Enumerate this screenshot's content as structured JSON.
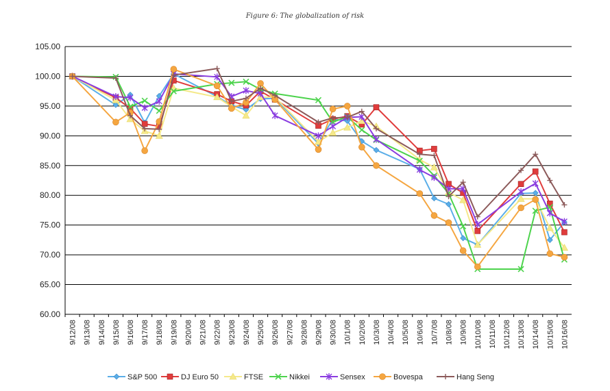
{
  "chart_data": {
    "type": "line",
    "title": "Figure 6: The globalization of risk",
    "xlabel": "",
    "ylabel": "",
    "ylim": [
      60,
      105
    ],
    "yticks": [
      "60.00",
      "65.00",
      "70.00",
      "75.00",
      "80.00",
      "85.00",
      "90.00",
      "95.00",
      "100.00",
      "105.00"
    ],
    "grid": true,
    "legend_position": "bottom",
    "categories": [
      "9/12/08",
      "9/13/08",
      "9/14/08",
      "9/15/08",
      "9/16/08",
      "9/17/08",
      "9/18/08",
      "9/19/08",
      "9/20/08",
      "9/21/08",
      "9/22/08",
      "9/23/08",
      "9/24/08",
      "9/25/08",
      "9/26/08",
      "9/27/08",
      "9/28/08",
      "9/29/08",
      "9/30/08",
      "10/1/08",
      "10/2/08",
      "10/3/08",
      "10/4/08",
      "10/5/08",
      "10/6/08",
      "10/7/08",
      "10/8/08",
      "10/9/08",
      "10/10/08",
      "10/11/08",
      "10/12/08",
      "10/13/08",
      "10/14/08",
      "10/15/08",
      "10/16/08"
    ],
    "series": [
      {
        "name": "S&P 500",
        "color": "#5aaee8",
        "marker": "diamond",
        "values": [
          100,
          null,
          null,
          95.2,
          96.9,
          92.2,
          96.7,
          100.4,
          null,
          null,
          96.6,
          95.1,
          94.4,
          96.2,
          96.3,
          null,
          null,
          88.7,
          92.8,
          92.5,
          89.1,
          87.6,
          null,
          null,
          84.4,
          79.5,
          78.5,
          72.8,
          71.7,
          null,
          null,
          80.3,
          80.4,
          72.5,
          75.5
        ]
      },
      {
        "name": "DJ Euro 50",
        "color": "#e03c3c",
        "marker": "square",
        "values": [
          100,
          null,
          null,
          96.4,
          94.6,
          92.0,
          91.6,
          99.3,
          null,
          null,
          97.0,
          95.8,
          95.1,
          97.5,
          96.1,
          null,
          null,
          91.7,
          92.8,
          93.3,
          91.9,
          94.8,
          null,
          null,
          87.5,
          87.8,
          81.9,
          80.4,
          74.0,
          null,
          null,
          81.9,
          84.0,
          78.6,
          73.8
        ]
      },
      {
        "name": "FTSE",
        "color": "#f5e98a",
        "marker": "triangle",
        "values": [
          100,
          null,
          null,
          96.0,
          92.8,
          90.8,
          90.0,
          98.0,
          null,
          null,
          96.5,
          94.9,
          93.4,
          96.5,
          96.5,
          null,
          null,
          89.0,
          90.5,
          91.4,
          92.5,
          91.6,
          null,
          null,
          86.0,
          84.7,
          80.5,
          79.2,
          71.7,
          null,
          null,
          79.4,
          79.4,
          74.5,
          71.2
        ]
      },
      {
        "name": "Nikkei",
        "color": "#4cd34c",
        "marker": "x",
        "values": [
          100,
          null,
          null,
          99.9,
          94.9,
          95.9,
          94.2,
          97.5,
          null,
          null,
          98.7,
          98.9,
          99.1,
          97.8,
          97.1,
          null,
          null,
          96.0,
          92.3,
          93.2,
          91.0,
          89.3,
          null,
          null,
          85.8,
          83.3,
          80.3,
          74.8,
          67.6,
          null,
          null,
          67.6,
          77.4,
          78.0,
          69.2
        ]
      },
      {
        "name": "Sensex",
        "color": "#8a3ce0",
        "marker": "star",
        "values": [
          100,
          null,
          null,
          96.6,
          96.4,
          94.7,
          95.8,
          100.4,
          null,
          null,
          99.9,
          96.6,
          97.6,
          97.1,
          93.4,
          null,
          null,
          90.0,
          91.6,
          93.1,
          93.2,
          89.4,
          null,
          null,
          84.3,
          83.0,
          81.1,
          81.1,
          75.1,
          null,
          null,
          80.6,
          82.0,
          77.0,
          75.6
        ]
      },
      {
        "name": "Bovespa",
        "color": "#f5a640",
        "marker": "circle",
        "values": [
          100,
          null,
          null,
          92.3,
          93.9,
          87.5,
          92.4,
          101.2,
          null,
          null,
          98.4,
          94.6,
          95.6,
          98.8,
          96.1,
          null,
          null,
          87.7,
          94.5,
          95.0,
          88.1,
          85.0,
          null,
          null,
          80.3,
          76.6,
          75.4,
          70.7,
          68.0,
          null,
          null,
          77.9,
          79.3,
          70.2,
          69.6
        ]
      },
      {
        "name": "Hang Seng",
        "color": "#8c5a5a",
        "marker": "plus",
        "values": [
          100,
          null,
          null,
          99.7,
          93.4,
          91.2,
          91.1,
          100.2,
          null,
          null,
          101.3,
          95.8,
          96.3,
          98.0,
          96.8,
          null,
          null,
          92.3,
          93.0,
          93.1,
          94.1,
          91.2,
          null,
          null,
          86.9,
          86.7,
          79.8,
          82.2,
          76.4,
          null,
          null,
          84.2,
          86.9,
          82.5,
          78.4
        ]
      }
    ]
  }
}
